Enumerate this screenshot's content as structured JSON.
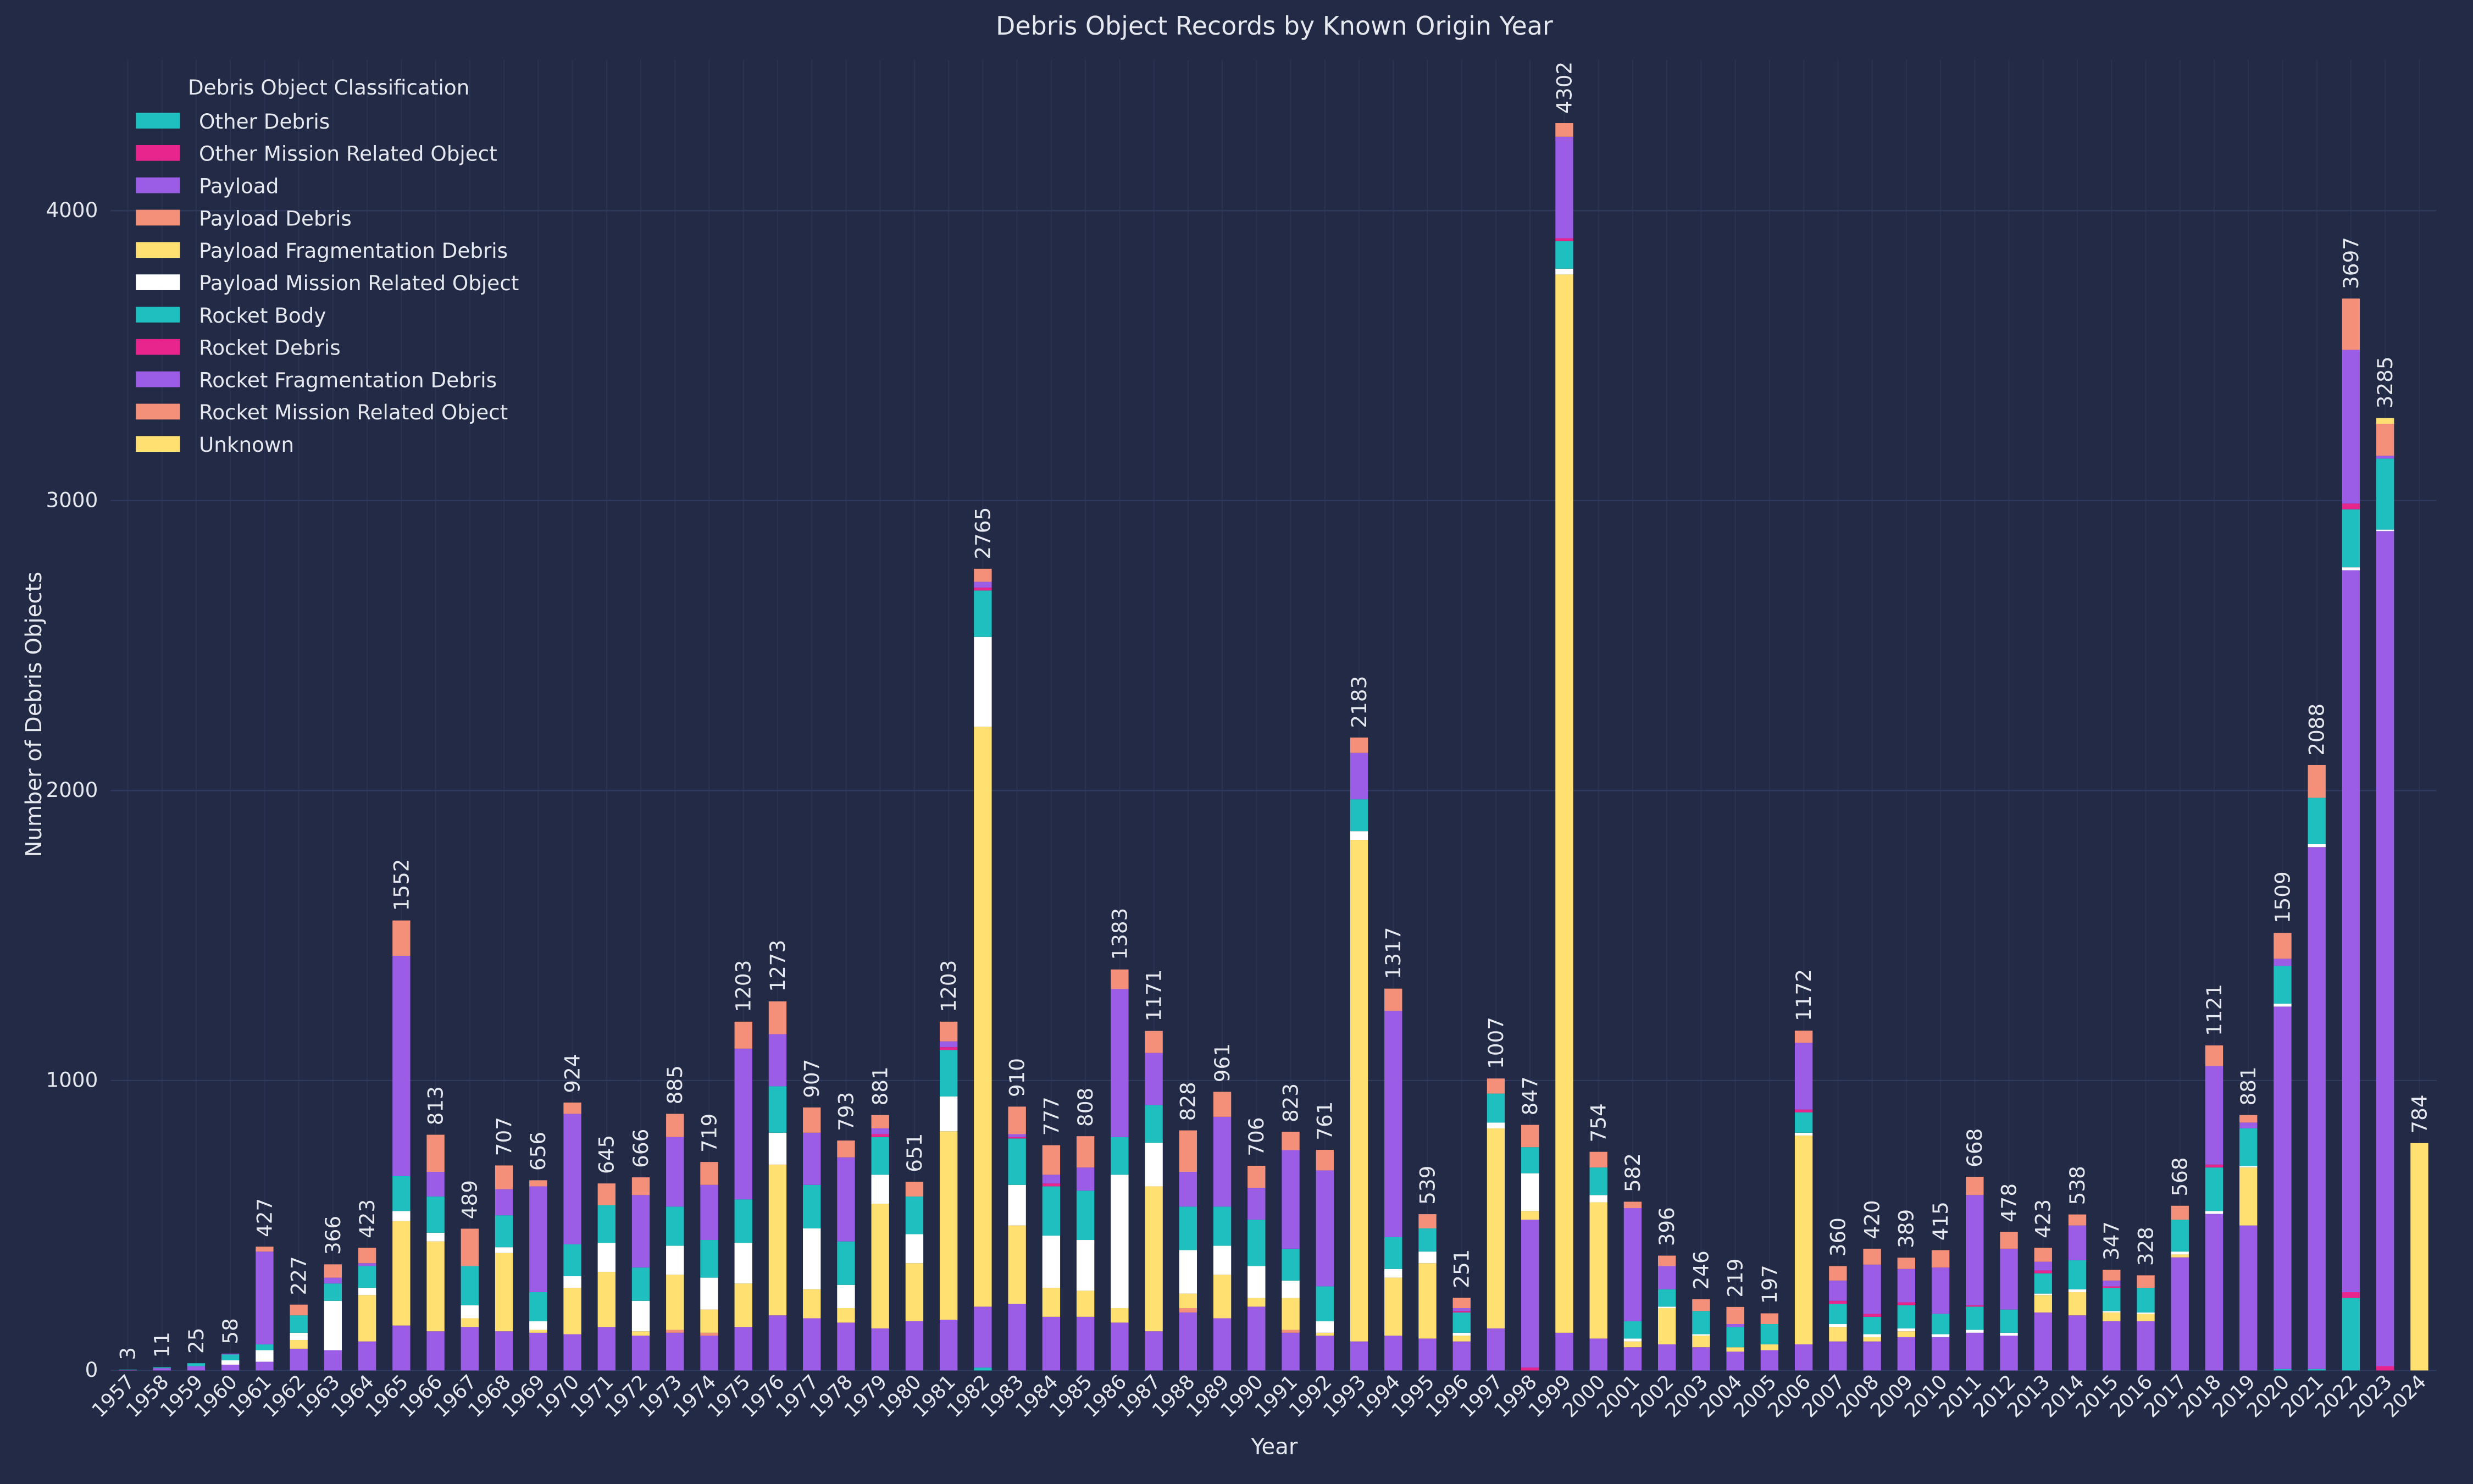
{
  "chart_data": {
    "type": "stacked_bar",
    "title": "Debris Object Records by Known Origin Year",
    "x_label": "Year",
    "y_label": "Number of Debris Objects",
    "legend_title": "Debris Object Classification",
    "legend_position": "upper left",
    "grid": true,
    "ylim": [
      0,
      4520
    ],
    "yticks": [
      0,
      1000,
      2000,
      3000,
      4000
    ],
    "categories": [
      "1957",
      "1958",
      "1959",
      "1960",
      "1961",
      "1962",
      "1963",
      "1964",
      "1965",
      "1966",
      "1967",
      "1968",
      "1969",
      "1970",
      "1971",
      "1972",
      "1973",
      "1974",
      "1975",
      "1976",
      "1977",
      "1978",
      "1979",
      "1980",
      "1981",
      "1982",
      "1983",
      "1984",
      "1985",
      "1986",
      "1987",
      "1988",
      "1989",
      "1990",
      "1991",
      "1992",
      "1993",
      "1994",
      "1995",
      "1996",
      "1997",
      "1998",
      "1999",
      "2000",
      "2001",
      "2002",
      "2003",
      "2004",
      "2005",
      "2006",
      "2007",
      "2008",
      "2009",
      "2010",
      "2011",
      "2012",
      "2013",
      "2014",
      "2015",
      "2016",
      "2017",
      "2018",
      "2019",
      "2020",
      "2021",
      "2022",
      "2023",
      "2024"
    ],
    "totals": [
      3,
      11,
      25,
      58,
      427,
      227,
      366,
      423,
      1552,
      813,
      489,
      707,
      656,
      924,
      645,
      666,
      885,
      719,
      1203,
      1273,
      907,
      793,
      881,
      651,
      1203,
      2765,
      910,
      777,
      808,
      1383,
      1171,
      828,
      961,
      706,
      823,
      761,
      2183,
      1317,
      539,
      251,
      1007,
      847,
      4302,
      754,
      582,
      396,
      246,
      219,
      197,
      1172,
      360,
      420,
      389,
      415,
      668,
      478,
      423,
      538,
      347,
      328,
      568,
      1121,
      881,
      1509,
      2088,
      3697,
      3285,
      784
    ],
    "series": [
      {
        "name": "Other Debris",
        "color": "#1fbfbf",
        "values": [
          0,
          0,
          0,
          0,
          0,
          0,
          0,
          0,
          0,
          0,
          0,
          0,
          0,
          0,
          0,
          0,
          0,
          0,
          0,
          0,
          0,
          0,
          0,
          0,
          0,
          10,
          0,
          0,
          0,
          0,
          0,
          0,
          0,
          0,
          0,
          0,
          0,
          0,
          0,
          0,
          0,
          0,
          0,
          0,
          0,
          0,
          0,
          0,
          0,
          0,
          0,
          0,
          0,
          0,
          0,
          0,
          0,
          0,
          0,
          0,
          0,
          0,
          0,
          5,
          5,
          250,
          0,
          0
        ]
      },
      {
        "name": "Other Mission Related Object",
        "color": "#e8258c",
        "values": [
          0,
          0,
          0,
          0,
          0,
          0,
          0,
          0,
          0,
          0,
          0,
          0,
          0,
          0,
          0,
          0,
          0,
          0,
          0,
          0,
          0,
          0,
          0,
          0,
          0,
          0,
          0,
          0,
          0,
          0,
          0,
          0,
          0,
          0,
          0,
          0,
          0,
          0,
          0,
          0,
          0,
          10,
          0,
          0,
          0,
          0,
          0,
          0,
          0,
          0,
          0,
          0,
          0,
          0,
          0,
          0,
          0,
          0,
          0,
          0,
          0,
          0,
          0,
          0,
          0,
          20,
          15,
          0
        ]
      },
      {
        "name": "Payload",
        "color": "#9b5de5",
        "values": [
          1,
          8,
          15,
          20,
          30,
          75,
          70,
          100,
          155,
          135,
          150,
          135,
          130,
          125,
          150,
          120,
          130,
          120,
          150,
          190,
          180,
          165,
          145,
          170,
          175,
          210,
          230,
          185,
          185,
          165,
          135,
          200,
          180,
          220,
          130,
          120,
          100,
          120,
          110,
          100,
          145,
          510,
          130,
          110,
          80,
          90,
          80,
          65,
          70,
          90,
          100,
          100,
          115,
          115,
          130,
          120,
          200,
          190,
          170,
          170,
          390,
          540,
          500,
          1250,
          1800,
          2490,
          2880,
          0
        ]
      },
      {
        "name": "Payload Debris",
        "color": "#f4907a",
        "values": [
          0,
          0,
          0,
          0,
          0,
          0,
          0,
          0,
          0,
          0,
          0,
          0,
          0,
          0,
          0,
          0,
          10,
          10,
          0,
          0,
          0,
          0,
          0,
          0,
          0,
          0,
          0,
          0,
          0,
          0,
          0,
          15,
          0,
          0,
          10,
          0,
          0,
          0,
          0,
          0,
          0,
          0,
          0,
          0,
          0,
          0,
          0,
          0,
          0,
          0,
          0,
          0,
          0,
          0,
          0,
          0,
          0,
          0,
          0,
          0,
          0,
          0,
          0,
          0,
          0,
          0,
          0,
          0
        ]
      },
      {
        "name": "Payload Fragmentation Debris",
        "color": "#ffe070",
        "values": [
          0,
          0,
          0,
          0,
          0,
          30,
          0,
          160,
          360,
          310,
          30,
          270,
          10,
          160,
          190,
          15,
          190,
          80,
          150,
          520,
          100,
          50,
          430,
          200,
          650,
          2000,
          270,
          100,
          90,
          50,
          500,
          50,
          150,
          30,
          110,
          10,
          1730,
          200,
          260,
          20,
          690,
          30,
          3650,
          470,
          20,
          125,
          40,
          15,
          20,
          720,
          50,
          15,
          20,
          0,
          0,
          0,
          60,
          80,
          30,
          25,
          10,
          0,
          200,
          0,
          0,
          0,
          0,
          0
        ]
      },
      {
        "name": "Payload Mission Related Object",
        "color": "#ffffff",
        "values": [
          0,
          0,
          0,
          15,
          40,
          25,
          170,
          25,
          35,
          30,
          45,
          20,
          30,
          40,
          100,
          105,
          100,
          110,
          140,
          110,
          210,
          80,
          100,
          100,
          120,
          310,
          140,
          180,
          175,
          460,
          150,
          150,
          100,
          110,
          60,
          40,
          30,
          30,
          40,
          10,
          20,
          130,
          20,
          25,
          10,
          5,
          5,
          0,
          0,
          10,
          10,
          10,
          10,
          10,
          10,
          10,
          5,
          10,
          5,
          5,
          10,
          10,
          5,
          10,
          10,
          10,
          5,
          0
        ]
      },
      {
        "name": "Rocket Body",
        "color": "#1fbfbf",
        "values": [
          2,
          3,
          10,
          20,
          20,
          60,
          60,
          75,
          120,
          125,
          135,
          110,
          100,
          110,
          130,
          115,
          135,
          130,
          150,
          160,
          150,
          150,
          130,
          130,
          160,
          160,
          160,
          170,
          170,
          130,
          130,
          150,
          135,
          160,
          110,
          120,
          110,
          110,
          80,
          70,
          100,
          90,
          95,
          95,
          60,
          60,
          80,
          70,
          70,
          70,
          70,
          60,
          80,
          70,
          80,
          80,
          70,
          100,
          80,
          85,
          110,
          150,
          130,
          130,
          160,
          200,
          245,
          0
        ]
      },
      {
        "name": "Rocket Debris",
        "color": "#e8258c",
        "values": [
          0,
          0,
          0,
          0,
          0,
          0,
          0,
          0,
          0,
          0,
          0,
          0,
          0,
          0,
          0,
          0,
          0,
          0,
          0,
          0,
          0,
          0,
          10,
          0,
          10,
          10,
          5,
          10,
          0,
          0,
          0,
          0,
          0,
          0,
          0,
          0,
          0,
          0,
          0,
          5,
          0,
          0,
          10,
          0,
          0,
          0,
          0,
          0,
          0,
          10,
          10,
          10,
          10,
          0,
          5,
          0,
          10,
          0,
          5,
          0,
          0,
          10,
          0,
          0,
          0,
          20,
          0,
          0
        ]
      },
      {
        "name": "Rocket Fragmentation Debris",
        "color": "#9b5de5",
        "values": [
          0,
          0,
          0,
          3,
          320,
          0,
          20,
          10,
          760,
          85,
          0,
          90,
          365,
          450,
          0,
          250,
          240,
          190,
          520,
          180,
          180,
          290,
          20,
          0,
          20,
          20,
          10,
          30,
          80,
          510,
          180,
          120,
          310,
          110,
          340,
          400,
          160,
          780,
          0,
          10,
          0,
          0,
          350,
          0,
          390,
          80,
          0,
          10,
          0,
          230,
          70,
          170,
          115,
          160,
          380,
          210,
          30,
          120,
          20,
          0,
          0,
          340,
          20,
          25,
          0,
          530,
          10,
          0
        ]
      },
      {
        "name": "Rocket Mission Related Object",
        "color": "#f4907a",
        "values": [
          0,
          0,
          0,
          0,
          17,
          37,
          46,
          53,
          122,
          128,
          129,
          82,
          21,
          39,
          75,
          61,
          80,
          79,
          93,
          113,
          87,
          58,
          46,
          51,
          68,
          45,
          95,
          102,
          108,
          68,
          76,
          143,
          86,
          76,
          63,
          71,
          53,
          77,
          49,
          36,
          52,
          77,
          47,
          54,
          22,
          36,
          41,
          59,
          37,
          42,
          50,
          55,
          39,
          60,
          63,
          58,
          48,
          38,
          37,
          43,
          48,
          71,
          26,
          89,
          113,
          177,
          110,
          0
        ]
      },
      {
        "name": "Unknown",
        "color": "#ffe070",
        "values": [
          0,
          0,
          0,
          0,
          0,
          0,
          0,
          0,
          0,
          0,
          0,
          0,
          0,
          0,
          0,
          0,
          0,
          0,
          0,
          0,
          0,
          0,
          0,
          0,
          0,
          0,
          0,
          0,
          0,
          0,
          0,
          0,
          0,
          0,
          0,
          0,
          0,
          0,
          0,
          0,
          0,
          0,
          0,
          0,
          0,
          0,
          0,
          0,
          0,
          0,
          0,
          0,
          0,
          0,
          0,
          0,
          0,
          0,
          0,
          0,
          0,
          0,
          0,
          0,
          0,
          0,
          20,
          784
        ]
      }
    ]
  }
}
